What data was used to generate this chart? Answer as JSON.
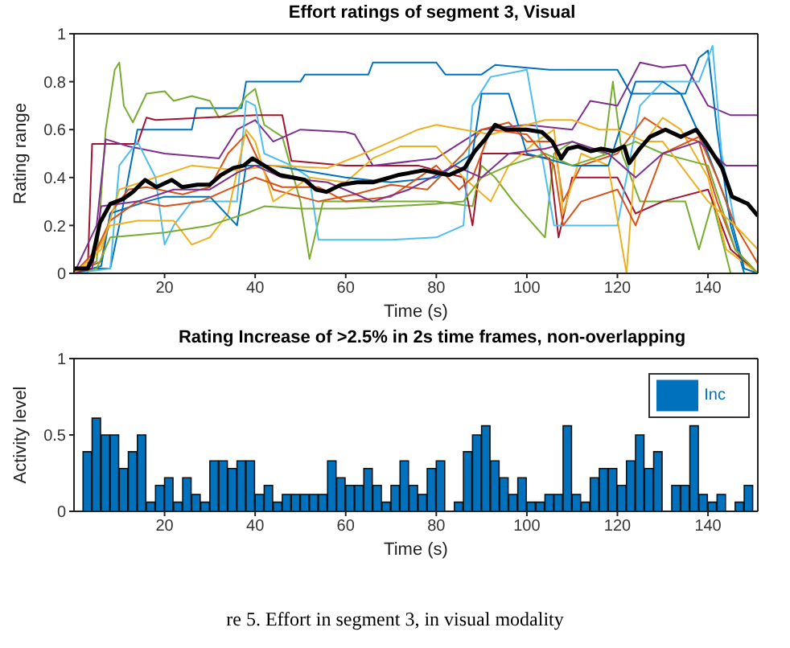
{
  "chart_data": [
    {
      "type": "line",
      "title": "Effort ratings of segment 3, Visual",
      "xlabel": "Time (s)",
      "ylabel": "Rating range",
      "xlim": [
        0,
        151
      ],
      "xticks": [
        20,
        40,
        60,
        80,
        100,
        120,
        140
      ],
      "ylim": [
        0,
        1
      ],
      "yticks": [
        0,
        0.2,
        0.4,
        0.6,
        0.8,
        1
      ],
      "grid": false,
      "legend": false,
      "series": [
        {
          "color": "#0072bd",
          "x": [
            0,
            8,
            10,
            14,
            26,
            27,
            37,
            38,
            50,
            51,
            65,
            66,
            80,
            82,
            90,
            93,
            105,
            120,
            123,
            135,
            138,
            140,
            142,
            145,
            148,
            151
          ],
          "values": [
            0.02,
            0.02,
            0.2,
            0.6,
            0.6,
            0.69,
            0.69,
            0.8,
            0.8,
            0.83,
            0.83,
            0.88,
            0.88,
            0.83,
            0.83,
            0.87,
            0.85,
            0.85,
            0.75,
            0.75,
            0.9,
            0.93,
            0.6,
            0.2,
            0,
            0
          ]
        },
        {
          "color": "#77ac30",
          "x": [
            0,
            5,
            7,
            9,
            10,
            11,
            13,
            16,
            20,
            22,
            26,
            30,
            32,
            36,
            38,
            40,
            42,
            46,
            50,
            52,
            55,
            70,
            80,
            88,
            90,
            93,
            97,
            104,
            106,
            110,
            117,
            119,
            121,
            125,
            135,
            138,
            141,
            145,
            151
          ],
          "values": [
            0,
            0.05,
            0.6,
            0.85,
            0.88,
            0.7,
            0.63,
            0.75,
            0.76,
            0.72,
            0.74,
            0.72,
            0.65,
            0.68,
            0.74,
            0.77,
            0.62,
            0.57,
            0.3,
            0.06,
            0.3,
            0.3,
            0.3,
            0.28,
            0.45,
            0.4,
            0.3,
            0.15,
            0.5,
            0.55,
            0.5,
            0.8,
            0.5,
            0.3,
            0.3,
            0.1,
            0.3,
            0,
            0
          ]
        },
        {
          "color": "#a2142f",
          "x": [
            0,
            3,
            4,
            14,
            16,
            18,
            40,
            46,
            48,
            60,
            76,
            86,
            88,
            90,
            98,
            105,
            107,
            110,
            120,
            124,
            130,
            140,
            145,
            151
          ],
          "values": [
            0,
            0,
            0.54,
            0.54,
            0.65,
            0.64,
            0.66,
            0.66,
            0.47,
            0.45,
            0.45,
            0.4,
            0.2,
            0.5,
            0.5,
            0.48,
            0.15,
            0.4,
            0.4,
            0.25,
            0.3,
            0.35,
            0.1,
            0
          ]
        },
        {
          "color": "#7e2f8e",
          "x": [
            0,
            5,
            7,
            12,
            20,
            32,
            36,
            40,
            44,
            50,
            60,
            62,
            66,
            80,
            90,
            100,
            110,
            114,
            120,
            125,
            130,
            135,
            140,
            145,
            151
          ],
          "values": [
            0,
            0.2,
            0.56,
            0.53,
            0.5,
            0.48,
            0.6,
            0.64,
            0.55,
            0.6,
            0.59,
            0.58,
            0.45,
            0.48,
            0.6,
            0.62,
            0.6,
            0.72,
            0.7,
            0.88,
            0.86,
            0.87,
            0.7,
            0.66,
            0.66
          ]
        },
        {
          "color": "#4dbeee",
          "x": [
            0,
            8,
            10,
            14,
            18,
            20,
            22,
            26,
            36,
            38,
            40,
            42,
            48,
            52,
            54,
            70,
            80,
            86,
            88,
            92,
            100,
            106,
            120,
            125,
            130,
            138,
            141,
            143,
            146
          ],
          "values": [
            0,
            0.02,
            0.45,
            0.55,
            0.4,
            0.12,
            0.2,
            0.3,
            0.3,
            0.72,
            0.7,
            0.5,
            0.45,
            0.4,
            0.14,
            0.14,
            0.15,
            0.2,
            0.7,
            0.82,
            0.85,
            0.2,
            0.2,
            0.7,
            0.8,
            0.8,
            0.95,
            0.5,
            0.2
          ]
        },
        {
          "color": "#d95319",
          "x": [
            0,
            6,
            8,
            12,
            16,
            24,
            30,
            34,
            38,
            40,
            44,
            54,
            62,
            70,
            78,
            86,
            90,
            96,
            100,
            106,
            108,
            112,
            120,
            126,
            130,
            138,
            142,
            146,
            151
          ],
          "values": [
            0,
            0.05,
            0.25,
            0.35,
            0.36,
            0.33,
            0.36,
            0.5,
            0.58,
            0.5,
            0.35,
            0.3,
            0.33,
            0.37,
            0.35,
            0.5,
            0.6,
            0.63,
            0.55,
            0.55,
            0.3,
            0.45,
            0.5,
            0.65,
            0.6,
            0.55,
            0.3,
            0.1,
            0
          ]
        },
        {
          "color": "#edb120",
          "x": [
            0,
            4,
            8,
            14,
            22,
            26,
            30,
            34,
            38,
            40,
            44,
            52,
            60,
            66,
            72,
            80,
            86,
            92,
            96,
            102,
            106,
            108,
            112,
            118,
            122,
            124,
            130,
            134,
            140,
            144,
            151
          ],
          "values": [
            0,
            0.05,
            0.2,
            0.22,
            0.22,
            0.12,
            0.15,
            0.25,
            0.6,
            0.55,
            0.3,
            0.4,
            0.38,
            0.48,
            0.53,
            0.53,
            0.4,
            0.3,
            0.45,
            0.55,
            0.6,
            0.25,
            0.5,
            0.45,
            0,
            0.5,
            0.65,
            0.6,
            0.4,
            0.1,
            0
          ]
        },
        {
          "color": "#0072bd",
          "x": [
            0,
            6,
            8,
            16,
            20,
            30,
            36,
            38,
            44,
            60,
            70,
            80,
            88,
            90,
            96,
            100,
            110,
            118,
            124,
            130,
            134,
            140,
            144,
            148,
            151
          ],
          "values": [
            0,
            0.03,
            0.25,
            0.3,
            0.32,
            0.32,
            0.2,
            0.45,
            0.45,
            0.4,
            0.38,
            0.4,
            0.5,
            0.75,
            0.75,
            0.5,
            0.45,
            0.45,
            0.8,
            0.8,
            0.75,
            0.5,
            0.3,
            0.02,
            0
          ]
        },
        {
          "color": "#77ac30",
          "x": [
            0,
            5,
            8,
            14,
            20,
            30,
            38,
            42,
            50,
            60,
            70,
            80,
            86,
            90,
            96,
            104,
            110,
            118,
            124,
            130,
            140,
            146,
            151
          ],
          "values": [
            0,
            0.02,
            0.15,
            0.16,
            0.17,
            0.2,
            0.25,
            0.28,
            0.27,
            0.27,
            0.28,
            0.29,
            0.3,
            0.4,
            0.45,
            0.5,
            0.45,
            0.5,
            0.55,
            0.5,
            0.45,
            0.1,
            0
          ]
        },
        {
          "color": "#d95319",
          "x": [
            0,
            5,
            8,
            14,
            20,
            28,
            34,
            40,
            46,
            54,
            60,
            70,
            80,
            85,
            88,
            92,
            100,
            106,
            108,
            112,
            120,
            124,
            130,
            138,
            142,
            146,
            151
          ],
          "values": [
            0,
            0.1,
            0.22,
            0.3,
            0.28,
            0.3,
            0.35,
            0.4,
            0.36,
            0.36,
            0.3,
            0.32,
            0.45,
            0.35,
            0.4,
            0.6,
            0.58,
            0.45,
            0.2,
            0.3,
            0.35,
            0.2,
            0.5,
            0.57,
            0.4,
            0.2,
            0.04
          ]
        },
        {
          "color": "#edb120",
          "x": [
            0,
            6,
            10,
            18,
            26,
            36,
            44,
            56,
            64,
            70,
            76,
            80,
            86,
            92,
            100,
            104,
            110,
            116,
            120,
            126,
            130,
            136,
            140,
            146,
            151
          ],
          "values": [
            0,
            0.1,
            0.35,
            0.4,
            0.45,
            0.43,
            0.45,
            0.44,
            0.5,
            0.55,
            0.6,
            0.62,
            0.6,
            0.58,
            0.62,
            0.64,
            0.64,
            0.6,
            0.6,
            0.55,
            0.55,
            0.4,
            0.3,
            0.2,
            0.1
          ]
        },
        {
          "color": "#7e2f8e",
          "x": [
            0,
            4,
            6,
            14,
            22,
            30,
            36,
            40,
            46,
            56,
            66,
            74,
            84,
            90,
            96,
            104,
            110,
            118,
            124,
            130,
            138,
            144,
            151
          ],
          "values": [
            0,
            0.02,
            0.28,
            0.3,
            0.35,
            0.35,
            0.42,
            0.45,
            0.4,
            0.38,
            0.3,
            0.35,
            0.45,
            0.4,
            0.5,
            0.52,
            0.55,
            0.5,
            0.4,
            0.5,
            0.55,
            0.45,
            0.45
          ]
        },
        {
          "color": "#000000",
          "x": [
            0,
            3,
            4,
            5.7,
            8,
            10.8,
            13,
            15.7,
            18.2,
            21.6,
            23.9,
            27.3,
            30,
            32.4,
            35.2,
            37.5,
            39.4,
            42,
            45.5,
            48.3,
            51,
            53.4,
            55.7,
            59,
            62.5,
            66,
            71.5,
            77.2,
            82.8,
            86.3,
            88.5,
            90.8,
            93,
            95.3,
            99.9,
            103.3,
            105.6,
            107.6,
            109,
            111.3,
            114.1,
            116.4,
            119.2,
            121.5,
            122.6,
            124.9,
            127.2,
            130.6,
            134,
            137.4,
            139.7,
            143.1,
            145.3,
            148.8,
            151
          ],
          "values": [
            0.02,
            0.02,
            0.06,
            0.21,
            0.29,
            0.31,
            0.34,
            0.39,
            0.36,
            0.39,
            0.36,
            0.37,
            0.37,
            0.41,
            0.44,
            0.45,
            0.48,
            0.45,
            0.41,
            0.4,
            0.39,
            0.35,
            0.34,
            0.37,
            0.38,
            0.38,
            0.41,
            0.43,
            0.41,
            0.44,
            0.51,
            0.56,
            0.62,
            0.6,
            0.6,
            0.59,
            0.55,
            0.48,
            0.52,
            0.53,
            0.51,
            0.52,
            0.51,
            0.53,
            0.46,
            0.52,
            0.57,
            0.6,
            0.57,
            0.6,
            0.54,
            0.44,
            0.32,
            0.29,
            0.24
          ]
        }
      ]
    },
    {
      "type": "bar",
      "title": "Rating Increase of >2.5% in 2s time frames, non-overlapping",
      "xlabel": "Time (s)",
      "ylabel": "Activity level",
      "xlim": [
        0,
        151
      ],
      "xticks": [
        20,
        40,
        60,
        80,
        100,
        120,
        140
      ],
      "ylim": [
        0,
        1
      ],
      "yticks": [
        0,
        0.5,
        1
      ],
      "grid": false,
      "legend": "top right",
      "annotations": [
        "re 5. Effort in segment 3, in visual modality"
      ],
      "x": [
        3,
        5,
        7,
        9,
        11,
        13,
        15,
        17,
        19,
        21,
        23,
        25,
        27,
        29,
        31,
        33,
        35,
        37,
        39,
        41,
        43,
        45,
        47,
        49,
        51,
        53,
        55,
        57,
        59,
        61,
        63,
        65,
        67,
        69,
        71,
        73,
        75,
        77,
        79,
        81,
        83,
        85,
        87,
        89,
        91,
        93,
        95,
        97,
        99,
        101,
        103,
        105,
        107,
        109,
        111,
        113,
        115,
        117,
        119,
        121,
        123,
        125,
        127,
        129,
        131,
        133,
        135,
        137,
        139,
        141,
        143,
        145,
        147,
        149
      ],
      "series": [
        {
          "name": "Inc",
          "color": "#0072bd",
          "values": [
            0.39,
            0.61,
            0.5,
            0.5,
            0.28,
            0.39,
            0.5,
            0.06,
            0.17,
            0.22,
            0.06,
            0.22,
            0.11,
            0.06,
            0.33,
            0.33,
            0.28,
            0.33,
            0.33,
            0.11,
            0.17,
            0.06,
            0.11,
            0.11,
            0.11,
            0.11,
            0.11,
            0.33,
            0.22,
            0.17,
            0.17,
            0.28,
            0.17,
            0.06,
            0.17,
            0.33,
            0.17,
            0.11,
            0.28,
            0.33,
            0,
            0.06,
            0.39,
            0.5,
            0.56,
            0.33,
            0.22,
            0.11,
            0.22,
            0.06,
            0.06,
            0.11,
            0.11,
            0.56,
            0.11,
            0.06,
            0.22,
            0.28,
            0.28,
            0.17,
            0.33,
            0.5,
            0.28,
            0.39,
            0,
            0.17,
            0.17,
            0.56,
            0.11,
            0.06,
            0.11,
            0,
            0.06,
            0.17
          ]
        }
      ]
    }
  ]
}
